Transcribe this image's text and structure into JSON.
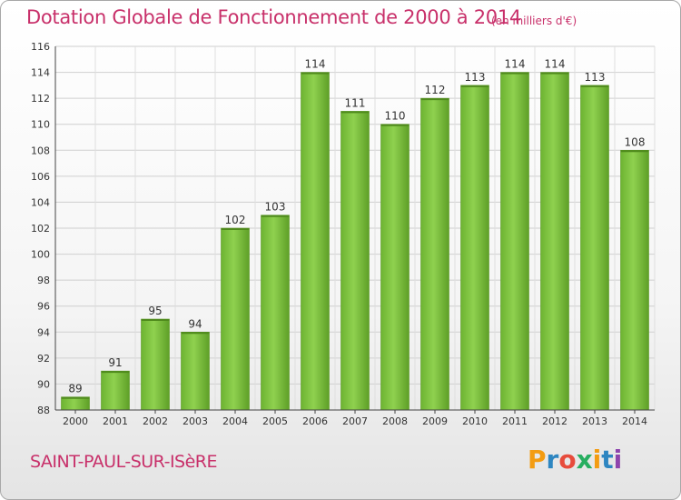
{
  "header": {
    "title": "Dotation Globale de Fonctionnement de 2000 à 2014",
    "subtitle": "(en milliers d'€)"
  },
  "footer": {
    "commune": "SAINT-PAUL-SUR-ISèRE",
    "logo": [
      "P",
      "r",
      "o",
      "x",
      "i",
      "t",
      "i"
    ],
    "logo_colors": [
      "#f39c12",
      "#2e86c1",
      "#e74c3c",
      "#27ae60",
      "#f39c12",
      "#2e86c1",
      "#8e44ad"
    ]
  },
  "chart_data": {
    "type": "bar",
    "title": "Dotation Globale de Fonctionnement de 2000 à 2014",
    "subtitle": "(en milliers d'€)",
    "categories": [
      "2000",
      "2001",
      "2002",
      "2003",
      "2004",
      "2005",
      "2006",
      "2007",
      "2008",
      "2009",
      "2010",
      "2011",
      "2012",
      "2013",
      "2014"
    ],
    "values": [
      89,
      91,
      95,
      94,
      102,
      103,
      114,
      111,
      110,
      112,
      113,
      114,
      114,
      113,
      108
    ],
    "ylim": [
      88,
      116
    ],
    "yticks": [
      88,
      90,
      92,
      94,
      96,
      98,
      100,
      102,
      104,
      106,
      108,
      110,
      112,
      114,
      116
    ],
    "grid": true,
    "bar_color": "#7cc242",
    "bar_color_dark": "#5a9a22"
  }
}
